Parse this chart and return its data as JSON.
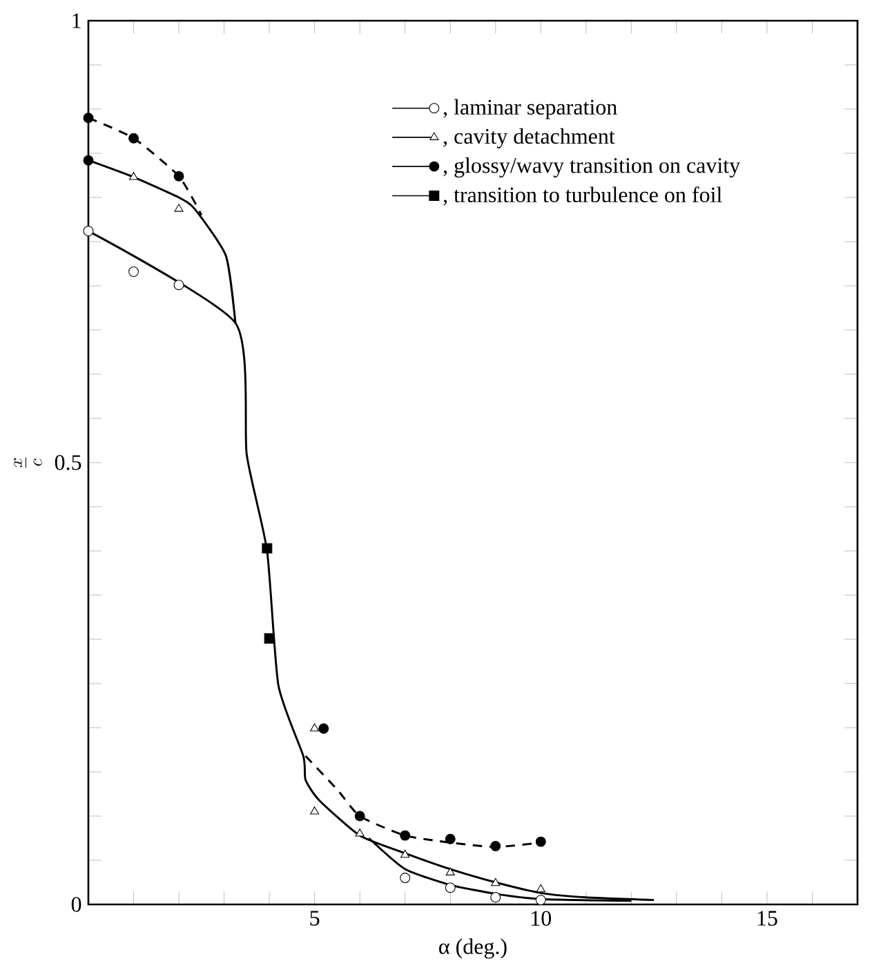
{
  "chart_data": {
    "type": "scatter",
    "xlabel": "α (deg.)",
    "ylabel": "\\frac{x}{c}",
    "xlim": [
      0,
      17
    ],
    "ylim": [
      0,
      1
    ],
    "xticks": [
      {
        "value": 0,
        "label": null
      },
      {
        "value": 1,
        "label": null
      },
      {
        "value": 2,
        "label": null
      },
      {
        "value": 3,
        "label": null
      },
      {
        "value": 4,
        "label": null
      },
      5,
      {
        "value": 6,
        "label": null
      },
      {
        "value": 7,
        "label": null
      },
      {
        "value": 8,
        "label": null
      },
      {
        "value": 9,
        "label": null
      },
      10,
      {
        "value": 11,
        "label": null
      },
      {
        "value": 12,
        "label": null
      },
      {
        "value": 13,
        "label": null
      },
      {
        "value": 14,
        "label": null
      },
      15,
      {
        "value": 16,
        "label": null
      },
      {
        "value": 17,
        "label": null
      }
    ],
    "yticks": [
      0,
      {
        "value": 0.05,
        "label": null
      },
      {
        "value": 0.1,
        "label": null
      },
      {
        "value": 0.15,
        "label": null
      },
      {
        "value": 0.2,
        "label": null
      },
      {
        "value": 0.25,
        "label": null
      },
      {
        "value": 0.3,
        "label": null
      },
      {
        "value": 0.35,
        "label": null
      },
      {
        "value": 0.4,
        "label": null
      },
      {
        "value": 0.45,
        "label": null
      },
      0.5,
      {
        "value": 0.55,
        "label": null
      },
      {
        "value": 0.6,
        "label": null
      },
      {
        "value": 0.65,
        "label": null
      },
      {
        "value": 0.7,
        "label": null
      },
      {
        "value": 0.75,
        "label": null
      },
      {
        "value": 0.8,
        "label": null
      },
      {
        "value": 0.85,
        "label": null
      },
      {
        "value": 0.9,
        "label": null
      },
      {
        "value": 0.95,
        "label": null
      },
      1
    ],
    "legend": "top right",
    "series": [
      {
        "name": ", laminar separation",
        "marker": "circle",
        "color": "#ffffff",
        "x": [
          0,
          1,
          2,
          7,
          8,
          9,
          10
        ],
        "values": [
          0.762,
          0.716,
          0.701,
          0.03,
          0.019,
          0.008,
          0.005
        ]
      },
      {
        "name": ", cavity detachment",
        "marker": "triangle",
        "color": "#ffffff",
        "x": [
          1,
          2,
          5,
          5,
          6,
          7,
          8,
          9,
          10
        ],
        "values": [
          0.823,
          0.787,
          0.199,
          0.105,
          0.08,
          0.056,
          0.036,
          0.024,
          0.017
        ]
      },
      {
        "name": ", glossy/wavy transition on cavity",
        "marker": "circle",
        "color": "#000000",
        "x": [
          0,
          0,
          1,
          2,
          5.2,
          6,
          7,
          8,
          9,
          10
        ],
        "values": [
          0.89,
          0.842,
          0.867,
          0.824,
          0.199,
          0.1,
          0.078,
          0.074,
          0.066,
          0.071
        ]
      },
      {
        "name": ", transition to turbulence on foil",
        "marker": "square",
        "color": "#000000",
        "x": [
          3.95,
          4
        ],
        "values": [
          0.403,
          0.301
        ]
      },
      {
        "type": "line",
        "marker": "none",
        "line_style": "solid",
        "color": "#000000",
        "x": [
          0,
          1,
          2,
          2.35,
          3.04,
          3.25
        ],
        "values": [
          0.842,
          0.823,
          0.8,
          0.787,
          0.734,
          0.658
        ]
      },
      {
        "type": "line",
        "marker": "none",
        "line_style": "solid",
        "color": "#000000",
        "x": [
          0,
          3.25,
          3.5,
          3.95,
          4.2,
          4.75,
          4.8,
          5.1,
          6,
          7,
          8,
          9,
          10,
          11,
          12.5
        ],
        "values": [
          0.762,
          0.658,
          0.509,
          0.4,
          0.248,
          0.168,
          0.141,
          0.118,
          0.078,
          0.058,
          0.04,
          0.025,
          0.013,
          0.008,
          0.005
        ]
      },
      {
        "type": "line",
        "marker": "none",
        "line_style": "solid",
        "color": "#000000",
        "x": [
          6.2,
          7,
          8,
          9,
          10,
          12
        ],
        "values": [
          0.075,
          0.04,
          0.022,
          0.012,
          0.006,
          0.004
        ]
      },
      {
        "type": "line",
        "marker": "none",
        "line_style": "dashed",
        "color": "#000000",
        "x": [
          0,
          1,
          2,
          2.5
        ],
        "values": [
          0.89,
          0.867,
          0.824,
          0.78
        ]
      },
      {
        "type": "line",
        "marker": "none",
        "line_style": "dashed",
        "color": "#000000",
        "x": [
          4.8,
          5.5,
          6,
          7,
          8,
          9,
          10
        ],
        "values": [
          0.168,
          0.13,
          0.1,
          0.078,
          0.07,
          0.065,
          0.07
        ]
      }
    ]
  }
}
